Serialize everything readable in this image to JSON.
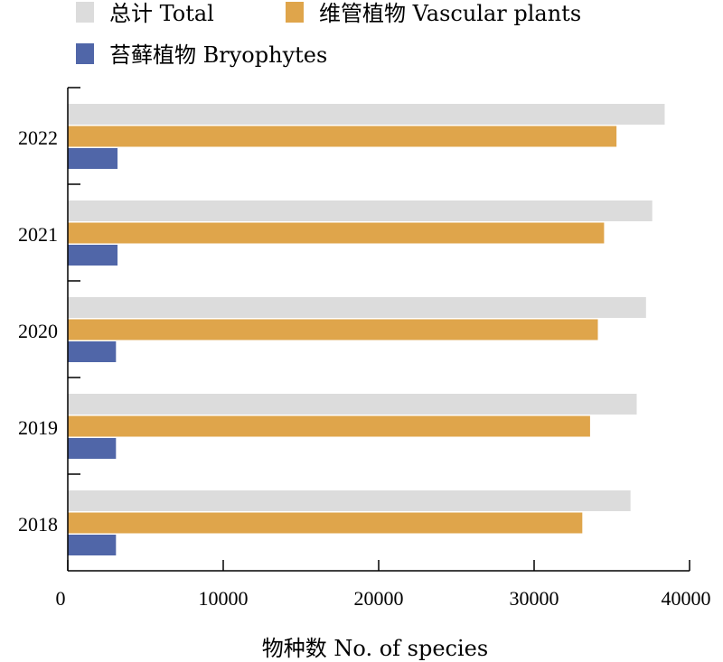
{
  "chart_data": {
    "type": "bar",
    "orientation": "horizontal",
    "categories": [
      "2022",
      "2021",
      "2020",
      "2019",
      "2018"
    ],
    "series": [
      {
        "name": "总计 Total",
        "color": "#dcdcdc",
        "values": [
          38400,
          37600,
          37200,
          36600,
          36200
        ]
      },
      {
        "name": "维管植物 Vascular plants",
        "color": "#dfa54b",
        "values": [
          35300,
          34500,
          34100,
          33600,
          33100
        ]
      },
      {
        "name": "苔藓植物 Bryophytes",
        "color": "#5066a8",
        "values": [
          3200,
          3200,
          3100,
          3100,
          3100
        ]
      }
    ],
    "xlabel": "物种数 No. of species",
    "ylabel": "",
    "xlim": [
      0,
      40000
    ],
    "xticks": [
      0,
      10000,
      20000,
      30000,
      40000
    ],
    "grid": false,
    "legend_position": "top"
  }
}
